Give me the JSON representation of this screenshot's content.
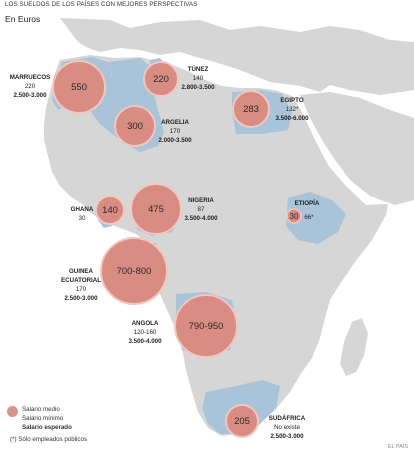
{
  "title": "LOS SUELDOS DE LOS PAÍSES CON MEJORES PERSPECTIVAS",
  "subtitle": "En Euros",
  "colors": {
    "land": "#d6d6d6",
    "ocean": "#ffffff",
    "highlight": "#a9c3d9",
    "bubble": "#d98c82",
    "bubble_border": "#f0c7c1"
  },
  "countries": [
    {
      "name": "MARRUECOS",
      "mean": "550",
      "min": "220",
      "expected": "2.500-3.000"
    },
    {
      "name": "TÚNEZ",
      "mean": "220",
      "min": "140",
      "expected": "2.800-3.500"
    },
    {
      "name": "ARGELIA",
      "mean": "300",
      "min": "170",
      "expected": "2.000-3.500"
    },
    {
      "name": "EGIPTO",
      "mean": "283",
      "min": "132*",
      "expected": "3.500-6.000"
    },
    {
      "name": "GHANA",
      "mean": "140",
      "min": "30",
      "expected": ""
    },
    {
      "name": "NIGERIA",
      "mean": "475",
      "min": "87",
      "expected": "3.500-4.000"
    },
    {
      "name": "ETIOPÍA",
      "mean": "30",
      "min": "66*",
      "expected": ""
    },
    {
      "name": "GUINEA ECUATORIAL",
      "name_line1": "GUINEA",
      "name_line2": "ECUATORIAL",
      "mean": "700-800",
      "min": "170",
      "expected": "2.500-3.000"
    },
    {
      "name": "ANGOLA",
      "mean": "790-950",
      "min": "120-160",
      "expected": "3.500-4.000"
    },
    {
      "name": "SUDÁFRICA",
      "mean": "205",
      "min": "No existe",
      "expected": "2.500-3.000"
    }
  ],
  "legend": {
    "mean": "Salario medio",
    "min": "Salario mínimo",
    "expected": "Salario esperado",
    "footnote": "(*) Sólo empleados públicos"
  },
  "credit": "EL PAÍS"
}
